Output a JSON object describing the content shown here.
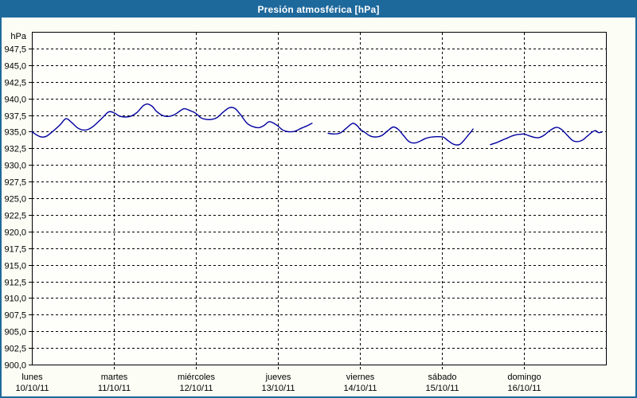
{
  "window": {
    "title": "Presión atmosférica [hPa]"
  },
  "colors": {
    "titlebar_bg": "#1e699c",
    "window_border": "#1e699c",
    "titlebar_text": "#ffffff",
    "background": "#fcfdf5",
    "plot_bg": "#fefefb",
    "grid": "#000000",
    "text": "#000000",
    "line": "#0000a0"
  },
  "chart_data": {
    "type": "line",
    "title": "Presión atmosférica [hPa]",
    "unit_label": "hPa",
    "ylabel": "hPa",
    "ylim": [
      900,
      950
    ],
    "ytick_step": 2.5,
    "yticks": [
      947.5,
      945,
      942.5,
      940,
      937.5,
      935,
      932.5,
      930,
      927.5,
      925,
      922.5,
      920,
      917.5,
      915,
      912.5,
      910,
      907.5,
      905,
      902.5,
      900
    ],
    "xlim_hours": [
      0,
      168
    ],
    "grid": true,
    "legend": false,
    "x_day_labels": [
      {
        "name": "lunes",
        "date": "10/10/11"
      },
      {
        "name": "martes",
        "date": "11/10/11"
      },
      {
        "name": "miércoles",
        "date": "12/10/11"
      },
      {
        "name": "jueves",
        "date": "13/10/11"
      },
      {
        "name": "viernes",
        "date": "14/10/11"
      },
      {
        "name": "sábado",
        "date": "15/10/11"
      },
      {
        "name": "domingo",
        "date": "16/10/11"
      }
    ],
    "series": [
      {
        "name": "Presión atmosférica",
        "unit": "hPa",
        "color": "#0000a0",
        "segments": [
          [
            [
              0,
              935.0
            ],
            [
              1.6,
              934.45
            ],
            [
              2.8,
              934.2
            ],
            [
              4.2,
              934.3
            ],
            [
              5.8,
              934.9
            ],
            [
              8.2,
              936.0
            ],
            [
              10,
              936.95
            ],
            [
              11.7,
              936.35
            ],
            [
              13.3,
              935.6
            ],
            [
              14.9,
              935.25
            ],
            [
              16.5,
              935.35
            ],
            [
              18.2,
              935.9
            ],
            [
              20.3,
              936.9
            ],
            [
              22.4,
              937.95
            ],
            [
              24,
              937.85
            ],
            [
              25.6,
              937.35
            ],
            [
              27.5,
              937.2
            ],
            [
              29.1,
              937.35
            ],
            [
              30.8,
              937.9
            ],
            [
              32.6,
              938.9
            ],
            [
              33.8,
              939.15
            ],
            [
              35.2,
              938.8
            ],
            [
              36.6,
              938.0
            ],
            [
              38.4,
              937.4
            ],
            [
              40.1,
              937.3
            ],
            [
              41.9,
              937.6
            ],
            [
              43.6,
              938.2
            ],
            [
              44.7,
              938.45
            ],
            [
              46.6,
              938.1
            ],
            [
              48,
              937.75
            ],
            [
              49.4,
              937.1
            ],
            [
              51,
              936.85
            ],
            [
              52.7,
              936.85
            ],
            [
              54.3,
              937.15
            ],
            [
              55.9,
              937.9
            ],
            [
              57.8,
              938.6
            ],
            [
              59.4,
              938.5
            ],
            [
              61,
              937.6
            ],
            [
              62.9,
              936.3
            ],
            [
              64.5,
              935.8
            ],
            [
              66.4,
              935.6
            ],
            [
              68,
              935.95
            ],
            [
              69.4,
              936.5
            ],
            [
              70.8,
              936.25
            ],
            [
              72,
              935.85
            ],
            [
              73.4,
              935.25
            ],
            [
              75,
              935.0
            ],
            [
              76.9,
              935.05
            ],
            [
              78.8,
              935.5
            ],
            [
              80.4,
              935.85
            ],
            [
              82,
              936.25
            ]
          ],
          [
            [
              86.7,
              934.75
            ],
            [
              88.3,
              934.65
            ],
            [
              90.2,
              934.8
            ],
            [
              92,
              935.5
            ],
            [
              93.9,
              936.25
            ],
            [
              95.3,
              935.85
            ],
            [
              96,
              935.4
            ],
            [
              97.4,
              934.9
            ],
            [
              99,
              934.35
            ],
            [
              100.7,
              934.2
            ],
            [
              102.5,
              934.45
            ],
            [
              104.4,
              935.25
            ],
            [
              105.8,
              935.7
            ],
            [
              107.2,
              935.35
            ],
            [
              108.8,
              934.4
            ],
            [
              110.4,
              933.5
            ],
            [
              112.1,
              933.3
            ],
            [
              113.7,
              933.6
            ],
            [
              115.3,
              934.0
            ],
            [
              117.2,
              934.2
            ],
            [
              119,
              934.25
            ],
            [
              120.5,
              934.15
            ],
            [
              121.9,
              933.6
            ],
            [
              123.5,
              933.1
            ],
            [
              125.1,
              933.05
            ],
            [
              126.3,
              933.6
            ],
            [
              127.4,
              934.3
            ],
            [
              128.4,
              934.9
            ],
            [
              129.1,
              935.4
            ]
          ],
          [
            [
              134.2,
              933.05
            ],
            [
              136,
              933.35
            ],
            [
              137.5,
              933.7
            ],
            [
              139.2,
              934.05
            ],
            [
              140.5,
              934.35
            ],
            [
              141.9,
              934.55
            ],
            [
              143.1,
              934.6
            ],
            [
              144,
              934.65
            ],
            [
              145.4,
              934.4
            ],
            [
              147,
              934.15
            ],
            [
              148.4,
              934.1
            ],
            [
              150,
              934.5
            ],
            [
              151.7,
              935.2
            ],
            [
              153.5,
              935.65
            ],
            [
              155.1,
              935.3
            ],
            [
              156.6,
              934.5
            ],
            [
              158.2,
              933.7
            ],
            [
              159.6,
              933.5
            ],
            [
              161.2,
              933.75
            ],
            [
              162.6,
              934.35
            ],
            [
              164,
              934.95
            ],
            [
              164.9,
              935.15
            ],
            [
              165.9,
              934.85
            ],
            [
              166.8,
              934.95
            ]
          ]
        ]
      }
    ]
  }
}
